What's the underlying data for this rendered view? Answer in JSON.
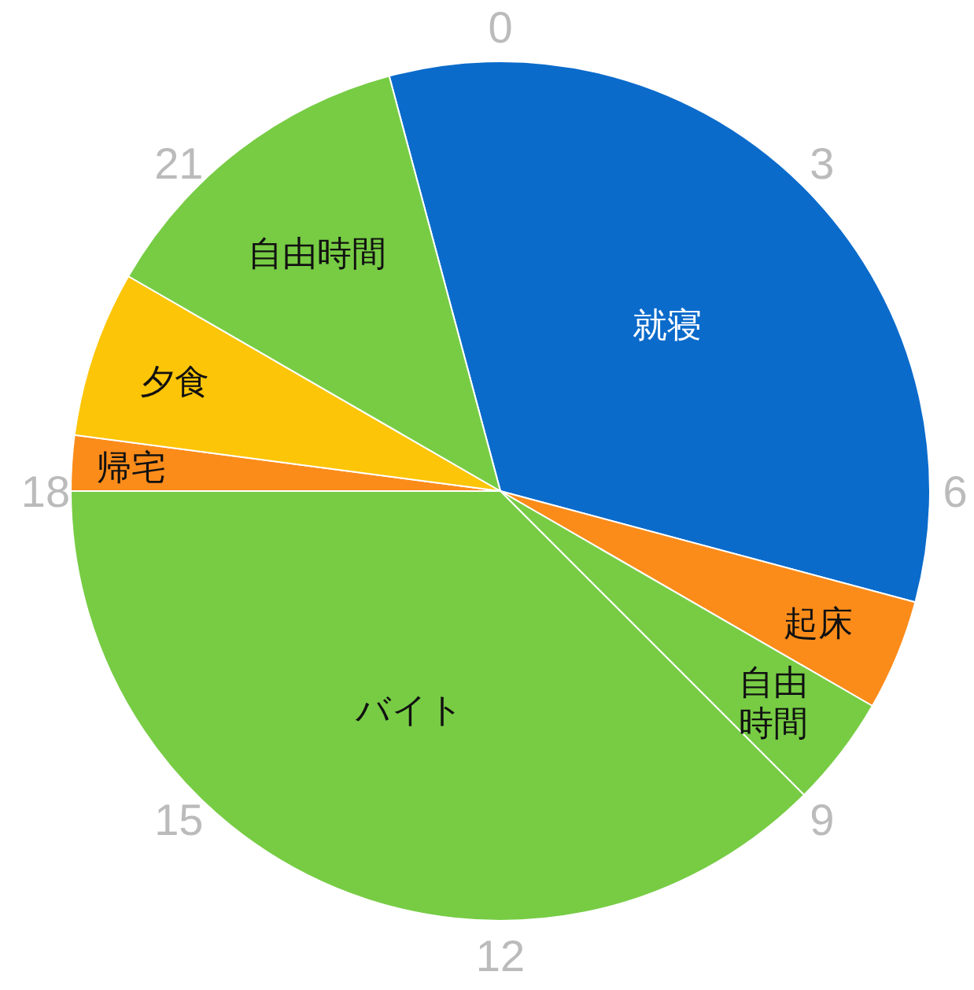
{
  "chart_data": {
    "type": "pie",
    "categories": [
      "就寝",
      "起床",
      "自由時間",
      "バイト",
      "帰宅",
      "夕食",
      "自由時間"
    ],
    "values": [
      33.33,
      4.17,
      4.17,
      37.5,
      2.08,
      6.25,
      12.5
    ],
    "colors": [
      "#0b6bcb",
      "#fb8c1a",
      "#77cc44",
      "#77cc44",
      "#fb8c1a",
      "#fcc507",
      "#77cc44"
    ],
    "annotations": [
      "0",
      "3",
      "6",
      "9",
      "12",
      "15",
      "18",
      "21"
    ]
  }
}
